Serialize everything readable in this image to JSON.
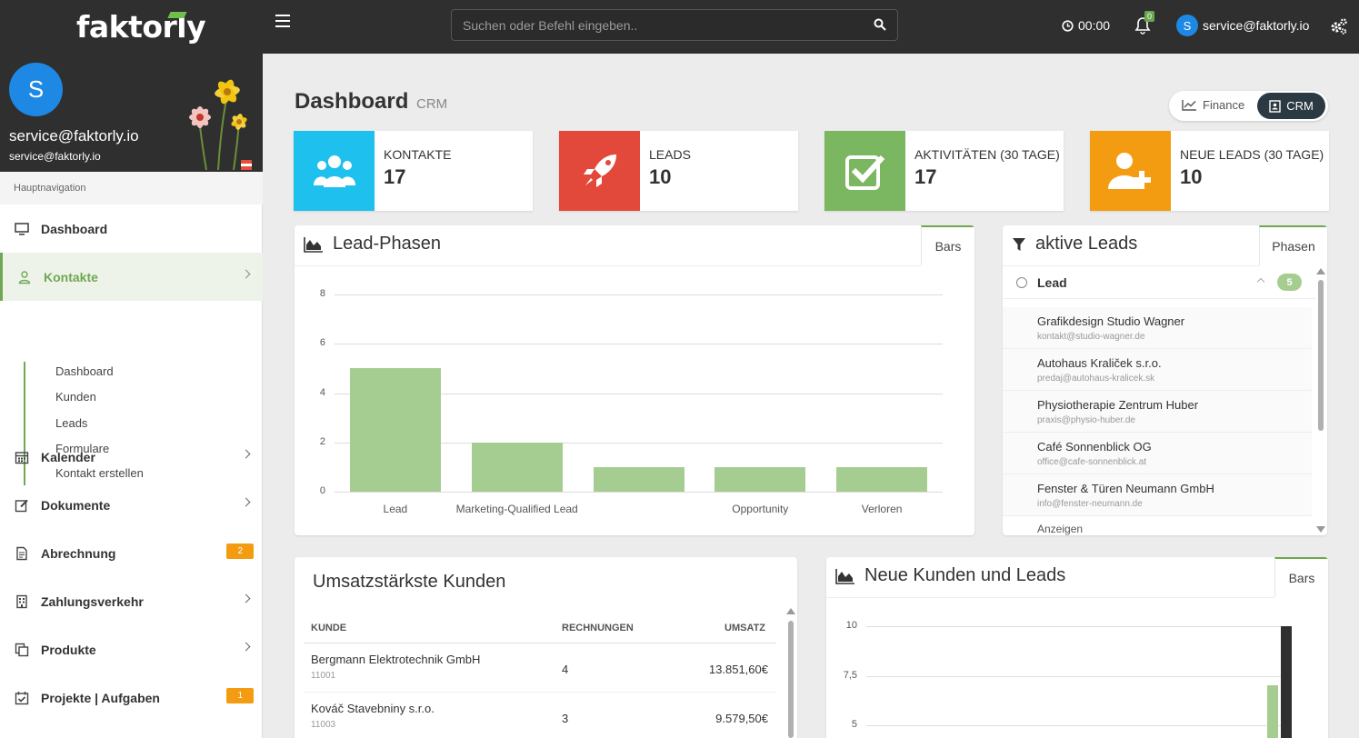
{
  "app": {
    "logo": "faktorly"
  },
  "topbar": {
    "search_placeholder": "Suchen oder Befehl eingeben..",
    "timer": "00:00",
    "notif_count": "0",
    "user_initial": "S",
    "user_email": "service@faktorly.io"
  },
  "sidebar": {
    "avatar_initial": "S",
    "profile_name": "service@faktorly.io",
    "profile_email": "service@faktorly.io",
    "nav_header": "Hauptnavigation",
    "items": [
      {
        "label": "Dashboard",
        "icon": "monitor-icon"
      },
      {
        "label": "Kontakte",
        "icon": "user-icon"
      },
      {
        "label": "Kalender",
        "icon": "calendar-icon"
      },
      {
        "label": "Dokumente",
        "icon": "edit-icon"
      },
      {
        "label": "Abrechnung",
        "icon": "invoice-icon",
        "badge": "2"
      },
      {
        "label": "Zahlungsverkehr",
        "icon": "bank-icon"
      },
      {
        "label": "Produkte",
        "icon": "copy-icon"
      },
      {
        "label": "Projekte | Aufgaben",
        "icon": "task-icon",
        "badge": "1"
      }
    ],
    "sub_items": [
      "Dashboard",
      "Kunden",
      "Leads",
      "Formulare",
      "Kontakt erstellen"
    ]
  },
  "main": {
    "title": "Dashboard",
    "subtitle": "CRM",
    "toggle": {
      "finance": "Finance",
      "crm": "CRM"
    },
    "kpis": [
      {
        "label": "KONTAKTE",
        "value": "17",
        "color": "#1ec0ee"
      },
      {
        "label": "LEADS",
        "value": "10",
        "color": "#e2493a"
      },
      {
        "label": "AKTIVITÄTEN (30 TAGE)",
        "value": "17",
        "color": "#7bb661"
      },
      {
        "label": "NEUE LEADS (30 TAGE)",
        "value": "10",
        "color": "#f39c12"
      }
    ],
    "lead_phases": {
      "title": "Lead-Phasen",
      "tab": "Bars"
    },
    "active_leads": {
      "title": "aktive Leads",
      "tab": "Phasen",
      "group_label": "Lead",
      "group_count": "5",
      "items": [
        {
          "name": "Grafikdesign Studio Wagner",
          "email": "kontakt@studio-wagner.de"
        },
        {
          "name": "Autohaus Kraliček s.r.o.",
          "email": "predaj@autohaus-kralicek.sk"
        },
        {
          "name": "Physiotherapie Zentrum Huber",
          "email": "praxis@physio-huber.de"
        },
        {
          "name": "Café Sonnenblick OG",
          "email": "office@cafe-sonnenblick.at"
        },
        {
          "name": "Fenster & Türen Neumann GmbH",
          "email": "info@fenster-neumann.de"
        }
      ],
      "more": "Anzeigen"
    },
    "top_customers": {
      "title": "Umsatzstärkste Kunden",
      "headers": [
        "KUNDE",
        "RECHNUNGEN",
        "UMSATZ"
      ],
      "rows": [
        {
          "name": "Bergmann Elektrotechnik GmbH",
          "id": "11001",
          "invoices": "4",
          "revenue": "13.851,60€"
        },
        {
          "name": "Kováč Stavebniny s.r.o.",
          "id": "11003",
          "invoices": "3",
          "revenue": "9.579,50€"
        }
      ]
    },
    "new_customers": {
      "title": "Neue Kunden und Leads",
      "tab": "Bars"
    }
  },
  "chart_data": [
    {
      "type": "bar",
      "title": "Lead-Phasen",
      "categories": [
        "Lead",
        "Marketing-Qualified Lead",
        "",
        "Opportunity",
        "Verloren"
      ],
      "values": [
        5,
        2,
        1,
        1,
        1
      ],
      "ylim": [
        0,
        8
      ],
      "yticks": [
        "0",
        "2",
        "4",
        "6",
        "8"
      ],
      "color": "#a5cd91"
    },
    {
      "type": "bar",
      "title": "Neue Kunden und Leads",
      "series": [
        {
          "values": [
            7
          ],
          "color": "#a5cd91"
        },
        {
          "values": [
            10
          ],
          "color": "#2f2f2f"
        }
      ],
      "ylim": [
        5,
        10
      ],
      "yticks": [
        "5",
        "7,5",
        "10"
      ]
    }
  ]
}
